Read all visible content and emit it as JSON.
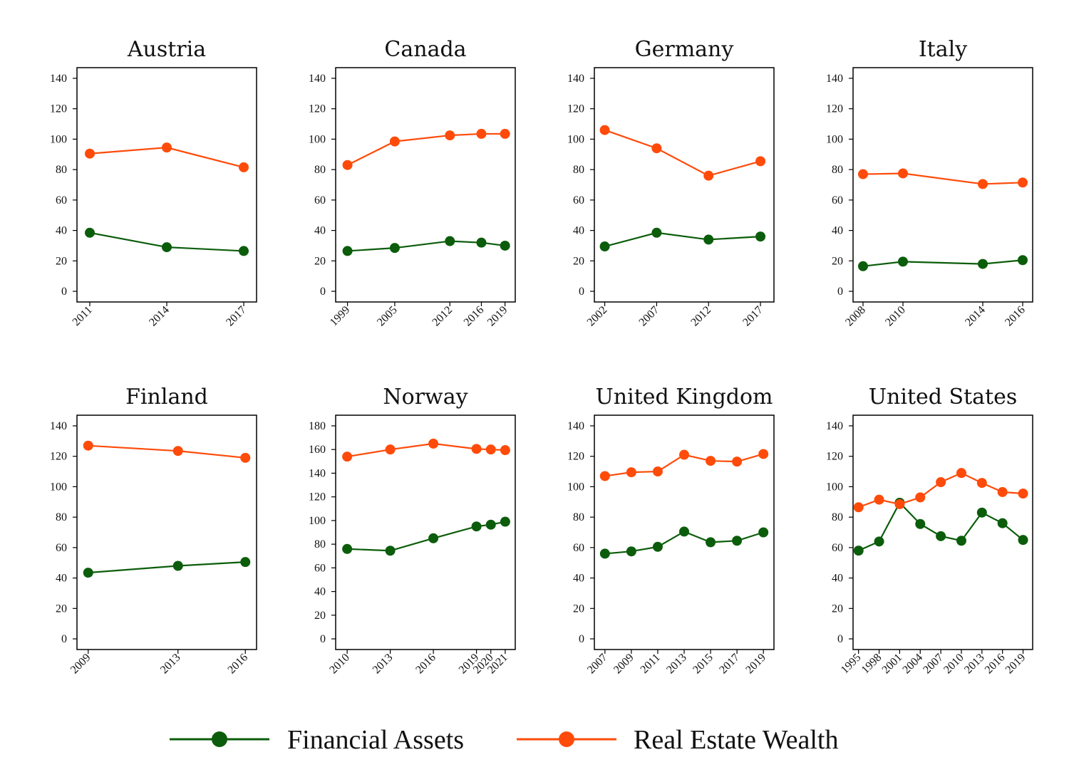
{
  "colors": {
    "financial": "#0b5d0b",
    "real_estate": "#ff4b0a",
    "axis": "#000000"
  },
  "legend": {
    "items": [
      {
        "label": "Financial Assets",
        "color": "#0b5d0b"
      },
      {
        "label": "Real Estate Wealth",
        "color": "#ff4b0a"
      }
    ]
  },
  "chart_data": [
    {
      "type": "line",
      "title": "Austria",
      "x": [
        2011,
        2014,
        2017
      ],
      "xlim": [
        2010.5,
        2017.5
      ],
      "ylim": [
        -7,
        147
      ],
      "yticks": [
        0,
        20,
        40,
        60,
        80,
        100,
        120,
        140
      ],
      "series": [
        {
          "name": "Financial Assets",
          "values": [
            38.5,
            29,
            26.5
          ]
        },
        {
          "name": "Real Estate Wealth",
          "values": [
            90.5,
            94.5,
            81.5
          ]
        }
      ]
    },
    {
      "type": "line",
      "title": "Canada",
      "x": [
        1999,
        2005,
        2012,
        2016,
        2019
      ],
      "xlim": [
        1997.5,
        2020.3
      ],
      "ylim": [
        -7,
        147
      ],
      "yticks": [
        0,
        20,
        40,
        60,
        80,
        100,
        120,
        140
      ],
      "series": [
        {
          "name": "Financial Assets",
          "values": [
            26.5,
            28.5,
            33,
            32,
            30
          ]
        },
        {
          "name": "Real Estate Wealth",
          "values": [
            83,
            98.5,
            102.5,
            103.5,
            103.5
          ]
        }
      ]
    },
    {
      "type": "line",
      "title": "Germany",
      "x": [
        2002,
        2007,
        2012,
        2017
      ],
      "xlim": [
        2001,
        2018.3
      ],
      "ylim": [
        -7,
        147
      ],
      "yticks": [
        0,
        20,
        40,
        60,
        80,
        100,
        120,
        140
      ],
      "series": [
        {
          "name": "Financial Assets",
          "values": [
            29.5,
            38.5,
            34,
            36
          ]
        },
        {
          "name": "Real Estate Wealth",
          "values": [
            106,
            94,
            76,
            85.5
          ]
        }
      ]
    },
    {
      "type": "line",
      "title": "Italy",
      "x": [
        2008,
        2010,
        2014,
        2016
      ],
      "xlim": [
        2007.5,
        2016.5
      ],
      "ylim": [
        -7,
        147
      ],
      "yticks": [
        0,
        20,
        40,
        60,
        80,
        100,
        120,
        140
      ],
      "series": [
        {
          "name": "Financial Assets",
          "values": [
            16.5,
            19.5,
            18,
            20.5
          ]
        },
        {
          "name": "Real Estate Wealth",
          "values": [
            77,
            77.5,
            70.5,
            71.5
          ]
        }
      ]
    },
    {
      "type": "line",
      "title": "Finland",
      "x": [
        2009,
        2013,
        2016
      ],
      "xlim": [
        2008.5,
        2016.5
      ],
      "ylim": [
        -7,
        147
      ],
      "yticks": [
        0,
        20,
        40,
        60,
        80,
        100,
        120,
        140
      ],
      "series": [
        {
          "name": "Financial Assets",
          "values": [
            43.5,
            48,
            50.5
          ]
        },
        {
          "name": "Real Estate Wealth",
          "values": [
            127,
            123.5,
            119
          ]
        }
      ]
    },
    {
      "type": "line",
      "title": "Norway",
      "x": [
        2010,
        2013,
        2016,
        2019,
        2020,
        2021
      ],
      "xlim": [
        2009.2,
        2021.7
      ],
      "ylim": [
        -9,
        189
      ],
      "yticks": [
        0,
        20,
        40,
        60,
        80,
        100,
        120,
        140,
        160,
        180
      ],
      "series": [
        {
          "name": "Financial Assets",
          "values": [
            76,
            74.5,
            85,
            95,
            96.5,
            99
          ]
        },
        {
          "name": "Real Estate Wealth",
          "values": [
            154,
            160,
            165,
            160.5,
            160,
            159.5
          ]
        }
      ]
    },
    {
      "type": "line",
      "title": "United Kingdom",
      "x": [
        2007,
        2009,
        2011,
        2013,
        2015,
        2017,
        2019
      ],
      "xlim": [
        2006.2,
        2019.8
      ],
      "ylim": [
        -7,
        147
      ],
      "yticks": [
        0,
        20,
        40,
        60,
        80,
        100,
        120,
        140
      ],
      "series": [
        {
          "name": "Financial Assets",
          "values": [
            56,
            57.5,
            60.5,
            70.5,
            63.5,
            64.5,
            70
          ]
        },
        {
          "name": "Real Estate Wealth",
          "values": [
            107,
            109.5,
            110,
            121,
            117,
            116.5,
            121.5
          ]
        }
      ]
    },
    {
      "type": "line",
      "title": "United States",
      "x": [
        1995,
        1998,
        2001,
        2004,
        2007,
        2010,
        2013,
        2016,
        2019
      ],
      "xlim": [
        1994.2,
        2020.4
      ],
      "ylim": [
        -7,
        147
      ],
      "yticks": [
        0,
        20,
        40,
        60,
        80,
        100,
        120,
        140
      ],
      "series": [
        {
          "name": "Financial Assets",
          "values": [
            58,
            64,
            89.5,
            75.5,
            67.5,
            64.5,
            83,
            76,
            65
          ]
        },
        {
          "name": "Real Estate Wealth",
          "values": [
            86.5,
            91.5,
            88.5,
            93,
            103,
            109,
            102.5,
            96.5,
            95.5
          ]
        }
      ]
    }
  ]
}
